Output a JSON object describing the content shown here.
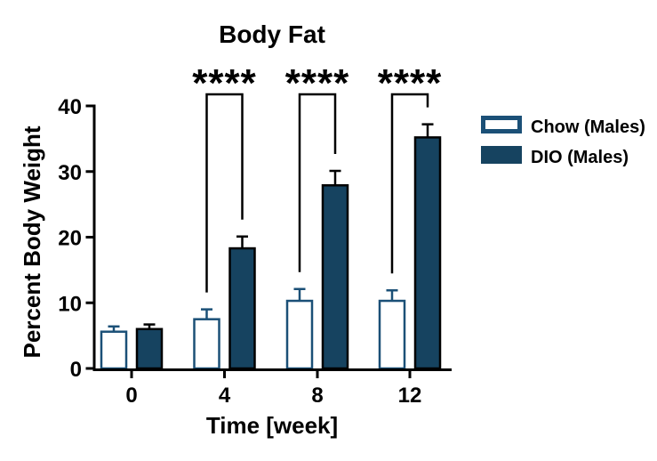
{
  "figure_title": "Body Fat",
  "chart_data": {
    "type": "bar",
    "title": "Body Fat",
    "xlabel": "Time [week]",
    "ylabel": "Percent Body Weight",
    "categories": [
      "0",
      "4",
      "8",
      "12"
    ],
    "yticks": [
      0,
      10,
      20,
      30,
      40
    ],
    "ylim": [
      0,
      40
    ],
    "grid": false,
    "series": [
      {
        "name": "Chow (Males)",
        "style": "outlined-white",
        "values": [
          5.6,
          7.5,
          10.3,
          10.3
        ],
        "errors_plus": [
          0.8,
          1.5,
          1.8,
          1.6
        ]
      },
      {
        "name": "DIO (Males)",
        "style": "solid",
        "values": [
          6.0,
          18.3,
          27.9,
          35.2
        ],
        "errors_plus": [
          0.7,
          1.8,
          2.2,
          2.0
        ]
      }
    ],
    "significance": [
      {
        "category": "4",
        "label": "****"
      },
      {
        "category": "8",
        "label": "****"
      },
      {
        "category": "12",
        "label": "****"
      }
    ],
    "legend": {
      "position": "right",
      "entries": [
        "Chow (Males)",
        "DIO (Males)"
      ]
    }
  },
  "colors": {
    "chow_outline": "#1B5077",
    "chow_fill": "#FFFFFF",
    "dio_fill": "#164360",
    "dio_outline": "#000000",
    "axis": "#000000",
    "background": "#FFFFFF",
    "text": "#000000"
  }
}
